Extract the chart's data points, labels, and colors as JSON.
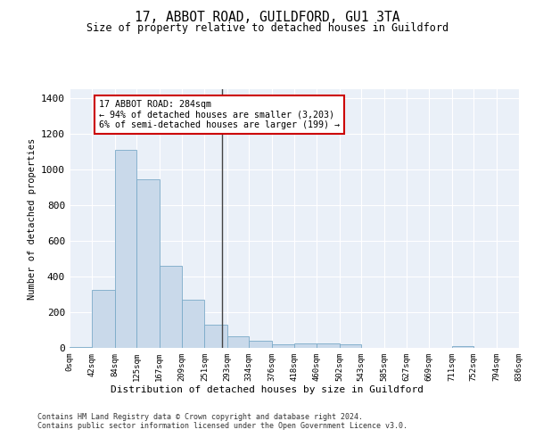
{
  "title": "17, ABBOT ROAD, GUILDFORD, GU1 3TA",
  "subtitle": "Size of property relative to detached houses in Guildford",
  "xlabel": "Distribution of detached houses by size in Guildford",
  "ylabel": "Number of detached properties",
  "bar_color": "#c9d9ea",
  "bar_edge_color": "#7aaac8",
  "background_color": "#eaf0f8",
  "grid_color": "#ffffff",
  "annotation_text": "17 ABBOT ROAD: 284sqm\n← 94% of detached houses are smaller (3,203)\n6% of semi-detached houses are larger (199) →",
  "vline_x": 284,
  "vline_color": "#444444",
  "annotation_box_color": "#ffffff",
  "annotation_box_edge": "#cc0000",
  "bins": [
    0,
    42,
    84,
    125,
    167,
    209,
    251,
    293,
    334,
    376,
    418,
    460,
    502,
    543,
    585,
    627,
    669,
    711,
    752,
    794,
    836
  ],
  "counts": [
    5,
    325,
    1110,
    945,
    460,
    270,
    130,
    65,
    38,
    22,
    25,
    25,
    18,
    2,
    0,
    0,
    0,
    10,
    0,
    0
  ],
  "footer_line1": "Contains HM Land Registry data © Crown copyright and database right 2024.",
  "footer_line2": "Contains public sector information licensed under the Open Government Licence v3.0.",
  "ylim": [
    0,
    1450
  ],
  "yticks": [
    0,
    200,
    400,
    600,
    800,
    1000,
    1200,
    1400
  ]
}
